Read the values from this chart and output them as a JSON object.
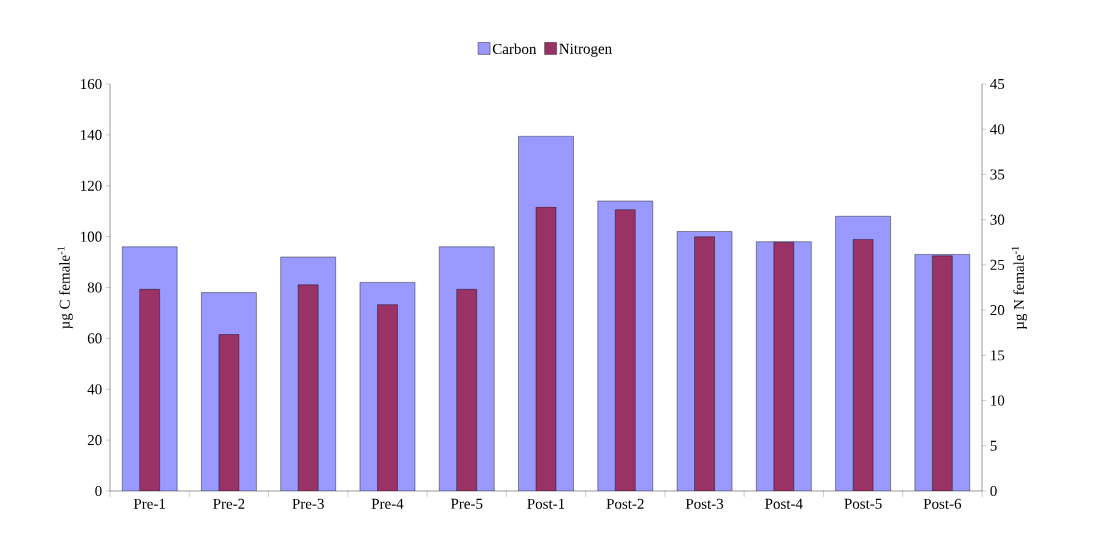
{
  "chart_data": {
    "type": "bar",
    "ylabel": "µg C female$^{-1}$",
    "y2label": "µg N female$^{-1}$",
    "categories": [
      "Pre-1",
      "Pre-2",
      "Pre-3",
      "Pre-4",
      "Pre-5",
      "Post-1",
      "Post-2",
      "Post-3",
      "Post-4",
      "Post-5",
      "Post-6"
    ],
    "series": [
      {
        "name": "Carbon",
        "color": "#9999ff",
        "values": [
          96,
          78,
          92,
          82,
          96,
          139.5,
          114,
          102,
          98,
          108,
          93
        ]
      },
      {
        "name": "Nitrogen",
        "color": "#993366",
        "axis": "y2",
        "values": [
          22.3,
          17.3,
          22.8,
          20.6,
          22.3,
          31.4,
          31.1,
          28.1,
          27.5,
          27.8,
          26.0
        ]
      }
    ],
    "ylim": [
      0,
      160
    ],
    "yticks": [
      0,
      20,
      40,
      60,
      80,
      100,
      120,
      140,
      160
    ],
    "y2lim": [
      0,
      45
    ],
    "y2ticks": [
      0,
      5,
      10,
      15,
      20,
      25,
      30,
      35,
      40,
      45
    ],
    "legend": "top"
  }
}
